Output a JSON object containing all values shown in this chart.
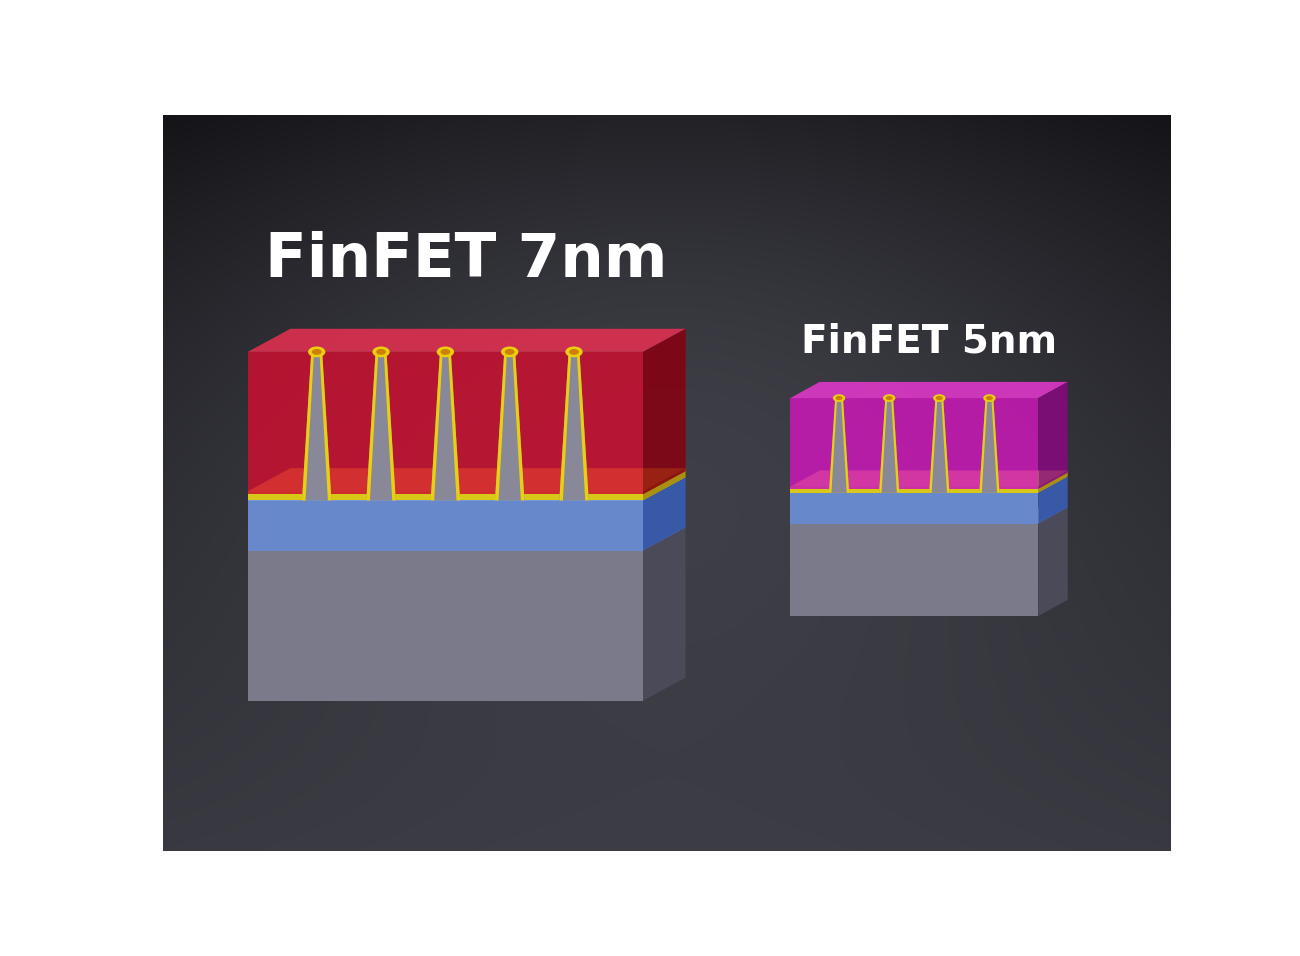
{
  "title_7nm": "FinFET 7nm",
  "title_5nm": "FinFET 5nm",
  "title_color": "#ffffff",
  "title_7nm_fontsize": 44,
  "title_5nm_fontsize": 28,
  "gray_face": "#7a7a8a",
  "gray_top": "#aaaabb",
  "gray_side": "#4a4a58",
  "blue_face": "#6888cc",
  "blue_top": "#8aaae0",
  "blue_side": "#3858a8",
  "yellow_face": "#d8c818",
  "yellow_top": "#f0e030",
  "yellow_side": "#a89010",
  "gate7_face": "#cc1030",
  "gate7_top": "#e83050",
  "gate7_side": "#880010",
  "gate5_face": "#cc18b8",
  "gate5_top": "#e838d0",
  "gate5_side": "#880880",
  "fin_face": "#888898",
  "fin_dark": "#555565",
  "fin_yellow": "#e8d010",
  "fin_orange": "#d08000"
}
